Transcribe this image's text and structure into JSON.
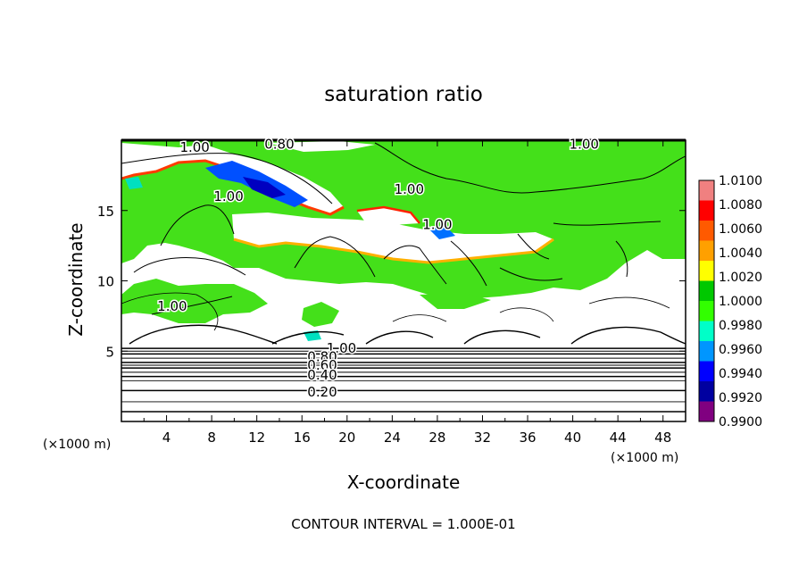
{
  "chart_data": {
    "type": "heatmap",
    "title": "saturation ratio",
    "xlabel": "X-coordinate",
    "ylabel": "Z-coordinate",
    "x_unit_left": "(×1000 m)",
    "x_unit_right": "(×1000 m)",
    "xlim": [
      0,
      50
    ],
    "ylim": [
      0,
      20
    ],
    "x_ticks": [
      4,
      8,
      12,
      16,
      20,
      24,
      28,
      32,
      36,
      40,
      44,
      48
    ],
    "y_ticks": [
      5,
      10,
      15
    ],
    "footer": "CONTOUR INTERVAL = 1.000E-01",
    "colorbar": {
      "levels": [
        1.01,
        1.008,
        1.006,
        1.004,
        1.002,
        1.0,
        0.998,
        0.996,
        0.994,
        0.992,
        0.99
      ],
      "labels": [
        "1.0100",
        "1.0080",
        "1.0060",
        "1.0040",
        "1.0020",
        "1.0000",
        "0.9980",
        "0.9960",
        "0.9940",
        "0.9920",
        "0.9900"
      ],
      "colors": [
        "#f08080",
        "#ff0000",
        "#ff5a00",
        "#ffa000",
        "#ffff00",
        "#00c800",
        "#32ff00",
        "#00ffc8",
        "#0096ff",
        "#0000ff",
        "#0000a0",
        "#800080"
      ]
    },
    "contour_labels": [
      {
        "text": "1.00",
        "x": 6.5,
        "y": 19.5
      },
      {
        "text": "0.80",
        "x": 14.0,
        "y": 19.7
      },
      {
        "text": "1.00",
        "x": 41.0,
        "y": 19.7
      },
      {
        "text": "1.00",
        "x": 9.5,
        "y": 16.0
      },
      {
        "text": "1.00",
        "x": 25.5,
        "y": 16.5
      },
      {
        "text": "1.00",
        "x": 28.0,
        "y": 14.0
      },
      {
        "text": "1.00",
        "x": 4.5,
        "y": 8.2
      },
      {
        "text": "1.00",
        "x": 19.5,
        "y": 5.2
      },
      {
        "text": "0.80",
        "x": 17.8,
        "y": 4.6
      },
      {
        "text": "0.60",
        "x": 17.8,
        "y": 4.0
      },
      {
        "text": "0.40",
        "x": 17.8,
        "y": 3.3
      },
      {
        "text": "0.20",
        "x": 17.8,
        "y": 2.1
      }
    ],
    "horizontal_contour_levels_z": [
      0.7,
      1.4,
      2.2,
      2.9,
      3.2,
      3.5,
      3.8,
      4.0,
      4.2,
      4.5,
      4.8,
      5.0,
      5.2
    ]
  }
}
